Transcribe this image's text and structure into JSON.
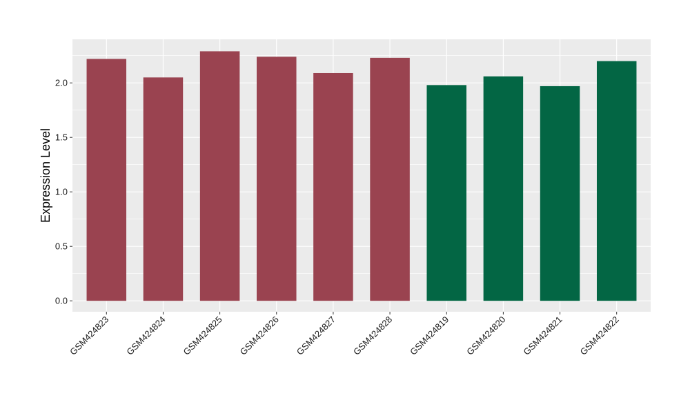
{
  "chart_data": {
    "type": "bar",
    "title": "",
    "xlabel": "",
    "ylabel": "Expression Level",
    "categories": [
      "GSM424823",
      "GSM424824",
      "GSM424825",
      "GSM424826",
      "GSM424827",
      "GSM424828",
      "GSM424819",
      "GSM424820",
      "GSM424821",
      "GSM424822"
    ],
    "values": [
      2.22,
      2.05,
      2.29,
      2.24,
      2.09,
      2.23,
      1.98,
      2.06,
      1.97,
      2.2
    ],
    "colors": [
      "#9a4350",
      "#9a4350",
      "#9a4350",
      "#9a4350",
      "#9a4350",
      "#9a4350",
      "#036644",
      "#036644",
      "#036644",
      "#036644"
    ],
    "ylim": [
      -0.1,
      2.4
    ],
    "yticks": [
      0.0,
      0.5,
      1.0,
      1.5,
      2.0
    ],
    "ytick_labels": [
      "0.0",
      "0.5",
      "1.0",
      "1.5",
      "2.0"
    ],
    "grid": true,
    "panel_background": "#ebebeb",
    "gridline_color": "#ffffff"
  }
}
